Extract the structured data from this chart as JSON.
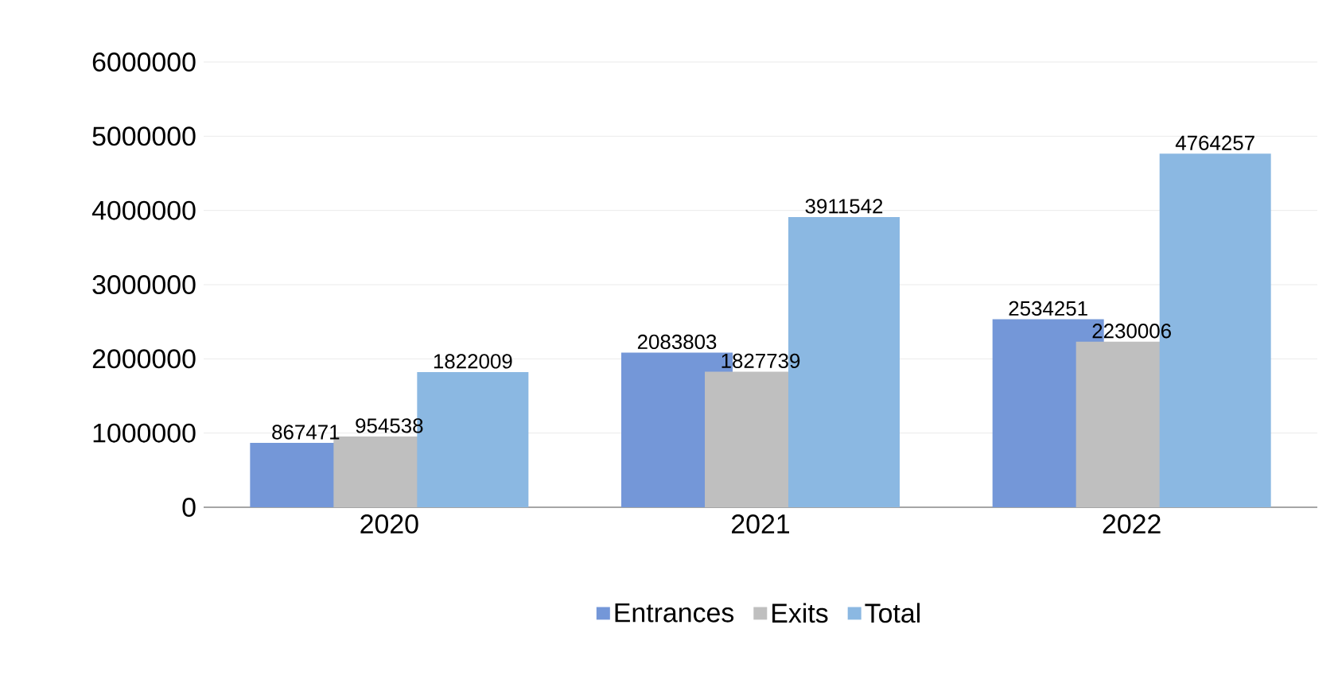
{
  "chart_data": {
    "type": "bar",
    "categories": [
      "2020",
      "2021",
      "2022"
    ],
    "series": [
      {
        "name": "Entrances",
        "color": "#7497d8",
        "values": [
          867471,
          2083803,
          2534251
        ]
      },
      {
        "name": "Exits",
        "color": "#bfbfbf",
        "values": [
          954538,
          1827739,
          2230006
        ]
      },
      {
        "name": "Total",
        "color": "#8bb8e2",
        "values": [
          1822009,
          3911542,
          4764257
        ]
      }
    ],
    "ylim": [
      0,
      6000000
    ],
    "yticks": [
      0,
      1000000,
      2000000,
      3000000,
      4000000,
      5000000,
      6000000
    ],
    "grid": "y",
    "legend": "bottom",
    "data_labels": true
  }
}
